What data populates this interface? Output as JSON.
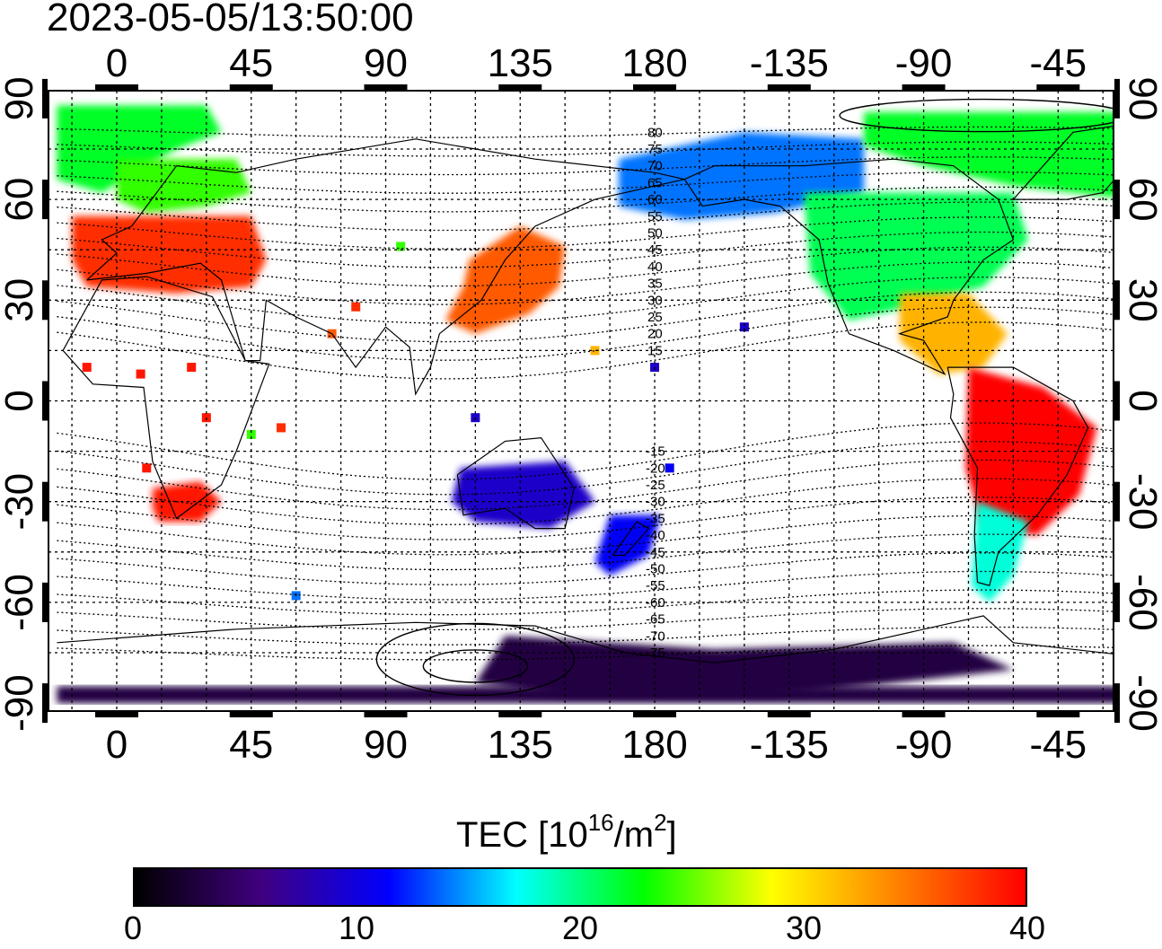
{
  "title": "2023-05-05/13:50:00",
  "lon_ticks_top": [
    "0",
    "45",
    "90",
    "135",
    "180",
    "-135",
    "-90",
    "-45"
  ],
  "lon_ticks_bottom": [
    "0",
    "45",
    "90",
    "135",
    "180",
    "-135",
    "-90",
    "-45"
  ],
  "lat_ticks_left": [
    "90",
    "60",
    "30",
    "0",
    "-30",
    "-60",
    "-90"
  ],
  "lat_ticks_right": [
    "90",
    "60",
    "30",
    "0",
    "-30",
    "-60",
    "-90"
  ],
  "contour_labels_north": [
    "80",
    "75",
    "70",
    "65",
    "60",
    "55",
    "50",
    "45",
    "40",
    "35",
    "30",
    "25",
    "20",
    "15"
  ],
  "contour_labels_south": [
    "-15",
    "-20",
    "-25",
    "-30",
    "-35",
    "-40",
    "-45",
    "-50",
    "-55",
    "-60",
    "-65",
    "-70",
    "-75"
  ],
  "colorbar": {
    "title_main": "TEC  [10",
    "title_exp": "16",
    "title_unit": "/m",
    "title_unit_exp": "2",
    "title_close": "]",
    "min": 0,
    "max": 40,
    "tick_labels": [
      "0",
      "10",
      "20",
      "30",
      "40"
    ],
    "colors": [
      "#000000",
      "#400080",
      "#0000ff",
      "#00ffff",
      "#00ff00",
      "#ffff00",
      "#ff8000",
      "#ff0000"
    ]
  },
  "tec_regions": [
    {
      "region": "Europe",
      "tec": 38
    },
    {
      "region": "Scandinavia",
      "tec": 24
    },
    {
      "region": "Arctic Atlantic",
      "tec": 22
    },
    {
      "region": "East Asia / Japan",
      "tec": 36
    },
    {
      "region": "Southern Africa",
      "tec": 39
    },
    {
      "region": "Australia",
      "tec": 9
    },
    {
      "region": "New Zealand",
      "tec": 11
    },
    {
      "region": "North America",
      "tec": 21
    },
    {
      "region": "Alaska / Canada",
      "tec": 14
    },
    {
      "region": "Central America / Caribbean",
      "tec": 32
    },
    {
      "region": "South America",
      "tec": 40
    },
    {
      "region": "Patagonia",
      "tec": 18
    },
    {
      "region": "Antarctica",
      "tec": 3
    }
  ]
}
